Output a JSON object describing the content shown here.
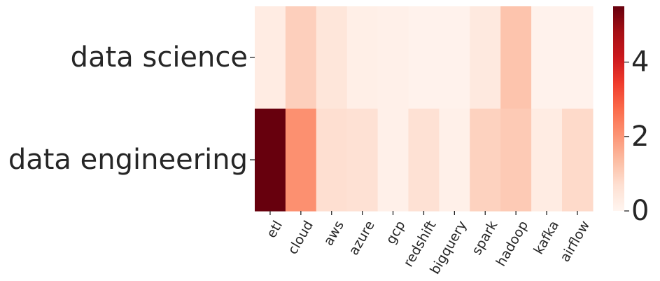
{
  "chart_data": {
    "type": "heatmap",
    "title": "",
    "xlabel": "",
    "ylabel": "",
    "rows": [
      "data science",
      "data engineering"
    ],
    "columns": [
      "etl",
      "cloud",
      "aws",
      "azure",
      "gcp",
      "redshift",
      "bigquery",
      "spark",
      "hadoop",
      "kafka",
      "airflow"
    ],
    "values": [
      [
        0.3,
        1.0,
        0.5,
        0.2,
        0.15,
        0.1,
        0.1,
        0.4,
        1.2,
        0.1,
        0.1
      ],
      [
        5.5,
        2.1,
        0.7,
        0.65,
        0.15,
        0.65,
        0.15,
        0.95,
        1.1,
        0.3,
        0.8
      ]
    ],
    "colorbar": {
      "range": [
        0,
        5.5
      ],
      "ticks": [
        "0",
        "2",
        "4"
      ],
      "tick_values": [
        0,
        2,
        4
      ],
      "colormap": "Reds",
      "colors": [
        "#fff5f0",
        "#fee0d2",
        "#fcbba1",
        "#fc9272",
        "#fb6a4a",
        "#ef3b2c",
        "#cb181d",
        "#a50f15",
        "#67000d"
      ]
    }
  }
}
